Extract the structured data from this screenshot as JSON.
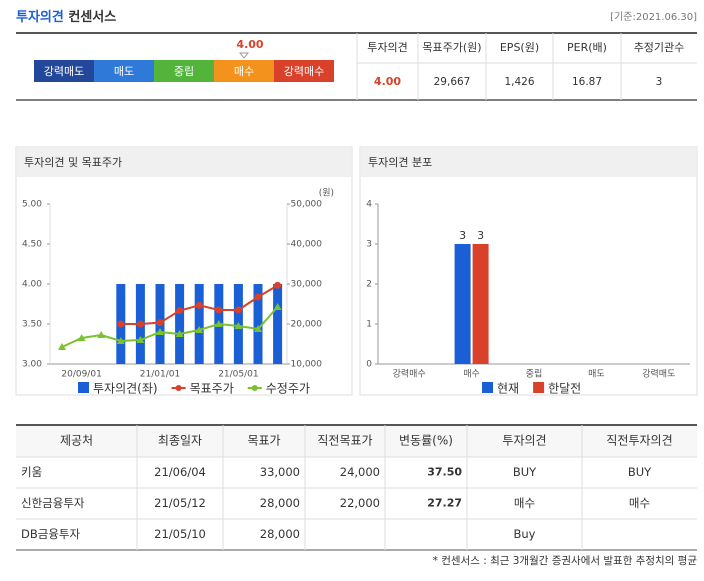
{
  "header": {
    "title": "투자의견",
    "subtitle": "컨센서스",
    "date": "[기준:2021.06.30]"
  },
  "opinion_scale": {
    "levels": [
      {
        "label": "강력매도",
        "color": "#23489a"
      },
      {
        "label": "매도",
        "color": "#2f7ad8"
      },
      {
        "label": "중립",
        "color": "#52b43a"
      },
      {
        "label": "매수",
        "color": "#f3921c"
      },
      {
        "label": "강력매수",
        "color": "#d9412a"
      }
    ],
    "value": 4,
    "value_label": "4.00"
  },
  "summary": {
    "columns": [
      "투자의견",
      "목표주가(원)",
      "EPS(원)",
      "PER(배)",
      "추정기관수"
    ],
    "row": [
      "4.00",
      "29,667",
      "1,426",
      "16.87",
      "3"
    ]
  },
  "chart_data": [
    {
      "type": "combo",
      "title": "투자의견 및 목표주가",
      "y2_label": "(원)",
      "categories": [
        null,
        "20/09/01",
        null,
        null,
        null,
        "21/01/01",
        null,
        null,
        null,
        "21/05/01",
        null,
        null
      ],
      "series": [
        {
          "name": "투자의견(좌)",
          "type": "bar",
          "color": "#1a5fd6",
          "values": [
            null,
            null,
            null,
            4,
            4,
            4,
            4,
            4,
            4,
            4,
            4,
            4
          ]
        },
        {
          "name": "목표주가",
          "type": "line",
          "axis": "y2",
          "color": "#d9412a",
          "values": [
            null,
            null,
            null,
            20000,
            20000,
            20333,
            23333,
            24667,
            23500,
            23500,
            26750,
            29667
          ]
        },
        {
          "name": "수정주가",
          "type": "line",
          "axis": "y2",
          "color": "#7ac231",
          "values": [
            14250,
            16500,
            17250,
            15750,
            16000,
            18000,
            17500,
            18500,
            20000,
            19500,
            18750,
            24250
          ]
        }
      ],
      "ylim": [
        3,
        5
      ],
      "yticks": [
        {
          "value": 3,
          "label": "3.00"
        },
        {
          "value": 3.5,
          "label": "3.50"
        },
        {
          "value": 4,
          "label": "4.00"
        },
        {
          "value": 4.5,
          "label": "4.50"
        },
        {
          "value": 5,
          "label": "5.00"
        }
      ],
      "y2lim": [
        10000,
        50000
      ],
      "y2ticks": [
        {
          "value": 10000,
          "label": "10,000"
        },
        {
          "value": 20000,
          "label": "20,000"
        },
        {
          "value": 30000,
          "label": "30,000"
        },
        {
          "value": 40000,
          "label": "40,000"
        },
        {
          "value": 50000,
          "label": "50,000"
        }
      ],
      "legend": "bottom"
    },
    {
      "type": "bar",
      "title": "투자의견 분포",
      "categories": [
        "강력매수",
        "매수",
        "중립",
        "매도",
        "강력매도"
      ],
      "series": [
        {
          "name": "현재",
          "color": "#1a5fd6",
          "values": [
            0,
            3,
            0,
            0,
            0
          ]
        },
        {
          "name": "한달전",
          "color": "#d9412a",
          "values": [
            0,
            3,
            0,
            0,
            0
          ]
        }
      ],
      "ylim": [
        0,
        4
      ],
      "yticks": [
        0,
        1,
        2,
        3,
        4
      ],
      "legend": "bottom"
    }
  ],
  "table": {
    "columns": [
      "제공처",
      "최종일자",
      "목표가",
      "직전목표가",
      "변동률(%)",
      "투자의견",
      "직전투자의견"
    ],
    "rows": [
      [
        "키움",
        "21/06/04",
        "33,000",
        "24,000",
        "37.50",
        "BUY",
        "BUY"
      ],
      [
        "신한금융투자",
        "21/05/12",
        "28,000",
        "22,000",
        "27.27",
        "매수",
        "매수"
      ],
      [
        "DB금융투자",
        "21/05/10",
        "28,000",
        null,
        null,
        "Buy",
        null
      ]
    ]
  },
  "footnote": "* 컨센서스 : 최근 3개월간 증권사에서 발표한 추정치의 평균"
}
